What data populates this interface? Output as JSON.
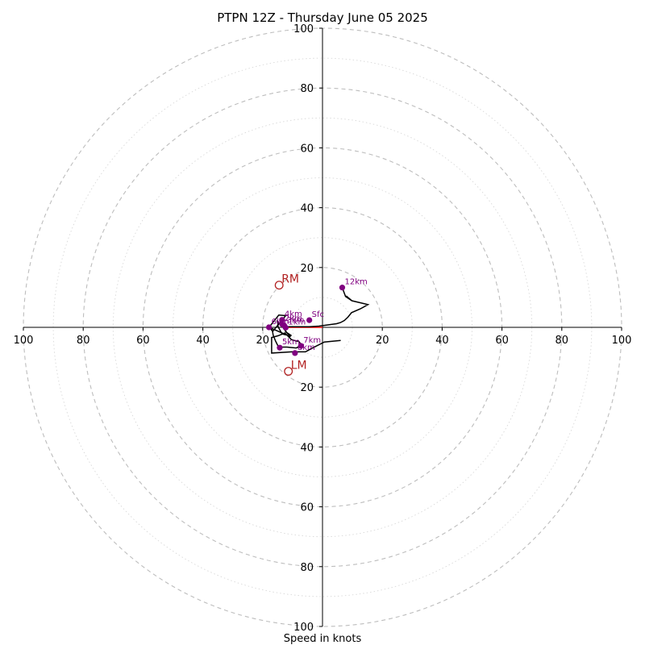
{
  "chart_data": {
    "type": "scatter",
    "title": "PTPN 12Z - Thursday June 05 2025",
    "xlabel": "Speed in knots",
    "ylabel": "",
    "xlim": [
      -100,
      100
    ],
    "ylim": [
      -100,
      100
    ],
    "grid": true,
    "axis_ticks": {
      "right": [
        "20",
        "40",
        "60",
        "80",
        "100"
      ],
      "left": [
        "20",
        "40",
        "60",
        "80",
        "100"
      ],
      "up": [
        "20",
        "40",
        "60",
        "80",
        "100"
      ],
      "down": [
        "20",
        "40",
        "60",
        "80",
        "100"
      ]
    },
    "hodograph": {
      "color": "#000000",
      "points": [
        [
          6.6,
          13.3
        ],
        [
          7.7,
          10.3
        ],
        [
          9.8,
          8.9
        ],
        [
          7.9,
          10.5
        ],
        [
          9.8,
          8.9
        ],
        [
          15.2,
          7.6
        ],
        [
          12.7,
          6.2
        ],
        [
          9.7,
          4.9
        ],
        [
          8.5,
          3.4
        ],
        [
          7.3,
          2.3
        ],
        [
          6.0,
          1.6
        ],
        [
          4.7,
          1.2
        ],
        [
          -1.2,
          0.4
        ],
        [
          -4.4,
          0.2
        ],
        [
          -9.4,
          0.2
        ],
        [
          -11.4,
          0.2
        ],
        [
          -12.8,
          0.2
        ],
        [
          -12.3,
          -1.5
        ],
        [
          -10.5,
          -2.7
        ],
        [
          -10.9,
          -3.1
        ],
        [
          -14.2,
          1.2
        ],
        [
          -15.1,
          2.0
        ],
        [
          -14.8,
          0.1
        ],
        [
          -13.5,
          -2.2
        ],
        [
          -11.9,
          -2.6
        ],
        [
          -17.9,
          0.0
        ],
        [
          -14.6,
          4.1
        ],
        [
          -12.3,
          3.9
        ],
        [
          -16.6,
          -1.3
        ],
        [
          -18.4,
          0.8
        ],
        [
          -16.7,
          -1.3
        ],
        [
          -16.5,
          -2.6
        ],
        [
          -15.7,
          -4.6
        ],
        [
          -14.7,
          -6.6
        ],
        [
          -11.9,
          -6.6
        ],
        [
          -8.8,
          -6.9
        ],
        [
          -7.0,
          -6.0
        ],
        [
          -6.9,
          -6.0
        ],
        [
          -8.0,
          -4.6
        ],
        [
          -8.7,
          -4.6
        ],
        [
          -10.4,
          -4.1
        ],
        [
          -12.6,
          -1.9
        ],
        [
          -14.8,
          -2.8
        ],
        [
          -17.0,
          -3.4
        ],
        [
          -17.0,
          -8.6
        ],
        [
          -10.3,
          -8.2
        ],
        [
          -5.7,
          -8.2
        ],
        [
          -3.9,
          -7.2
        ],
        [
          0.6,
          -4.9
        ],
        [
          6.1,
          -4.4
        ]
      ]
    },
    "height_markers": {
      "color": "#800080",
      "points": [
        {
          "label": "Sfc",
          "u": -4.4,
          "v": 2.4
        },
        {
          "label": "1km",
          "u": -12.3,
          "v": -0.1
        },
        {
          "label": "2km",
          "u": -13.5,
          "v": 1.1
        },
        {
          "label": "3km",
          "u": -12.8,
          "v": 0.6
        },
        {
          "label": "4km",
          "u": -13.5,
          "v": 2.5
        },
        {
          "label": "5km",
          "u": -14.3,
          "v": -6.8
        },
        {
          "label": "6km",
          "u": -17.9,
          "v": 0.0
        },
        {
          "label": "7km",
          "u": -7.2,
          "v": -6.2
        },
        {
          "label": "8km",
          "u": -9.2,
          "v": -8.6
        },
        {
          "label": "12km",
          "u": 6.6,
          "v": 13.3
        }
      ]
    },
    "storm_motions": {
      "color": "#b22222",
      "points": [
        {
          "label": "RM",
          "u": -14.5,
          "v": 14.1
        },
        {
          "label": "LM",
          "u": -11.4,
          "v": -14.7
        }
      ]
    },
    "mean_wind_segment": {
      "color": "#ff0000",
      "from": [
        -13.0,
        0.0
      ],
      "to": [
        0.0,
        0.0
      ]
    }
  }
}
